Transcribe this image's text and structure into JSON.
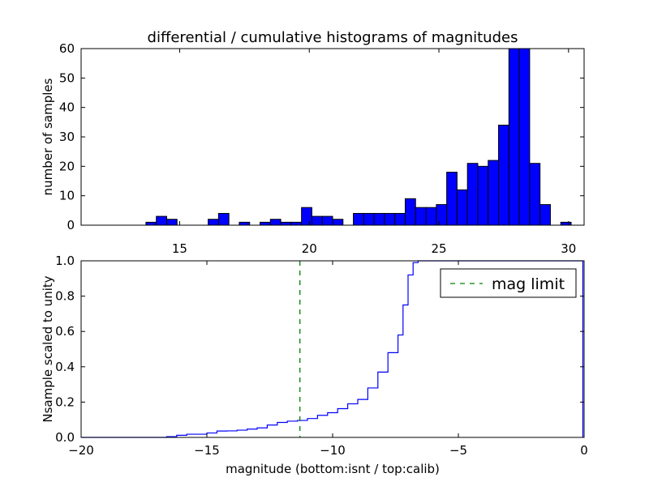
{
  "chart_data": [
    {
      "type": "bar",
      "title": "differential / cumulative histograms of magnitudes",
      "xlabel": "",
      "ylabel": "number of samples",
      "xlim": [
        11.2,
        30.6
      ],
      "ylim": [
        0,
        60
      ],
      "x_ticks": [
        15,
        20,
        25,
        30
      ],
      "y_ticks": [
        0,
        10,
        20,
        30,
        40,
        50,
        60
      ],
      "tick_labels_position": "bottom",
      "bar_color": "#0000ff",
      "bin_edges": [
        13.7,
        14.1,
        14.5,
        14.9,
        15.3,
        15.7,
        16.1,
        16.5,
        16.9,
        17.3,
        17.7,
        18.1,
        18.5,
        18.9,
        19.3,
        19.7,
        20.1,
        20.5,
        20.9,
        21.3,
        21.7,
        22.1,
        22.5,
        22.9,
        23.3,
        23.7,
        24.1,
        24.5,
        24.9,
        25.3,
        25.7,
        26.1,
        26.5,
        26.9,
        27.3,
        27.7,
        28.1,
        28.5,
        28.9,
        29.3,
        29.7,
        30.1,
        30.5,
        30.9
      ],
      "counts": [
        1,
        3,
        2,
        0,
        0,
        0,
        2,
        4,
        0,
        1,
        0,
        1,
        2,
        1,
        1,
        6,
        3,
        3,
        2,
        0,
        4,
        4,
        4,
        4,
        4,
        9,
        6,
        6,
        7,
        18,
        12,
        21,
        20,
        22,
        34,
        60,
        60,
        21,
        7,
        0,
        1,
        0,
        0
      ],
      "clipped_counts_note": ""
    },
    {
      "type": "line",
      "title": "",
      "xlabel": "magnitude (bottom:isnt / top:calib)",
      "ylabel": "Nsample scaled to unity",
      "xlim": [
        -20,
        0
      ],
      "ylim": [
        0,
        1.0
      ],
      "x_ticks": [
        -20,
        -15,
        -10,
        -5,
        0
      ],
      "x_tick_labels": [
        "−20",
        "−15",
        "−10",
        "−5",
        "0"
      ],
      "y_ticks": [
        0.0,
        0.2,
        0.4,
        0.6,
        0.8,
        1.0
      ],
      "y_tick_labels": [
        "0.0",
        "0.2",
        "0.4",
        "0.6",
        "0.8",
        "1.0"
      ],
      "series": [
        {
          "color": "#0000ff",
          "style": "steps",
          "x": [
            -20,
            -16.6,
            -16.2,
            -15.8,
            -15.4,
            -15.0,
            -14.6,
            -14.2,
            -13.8,
            -13.4,
            -13.0,
            -12.6,
            -12.2,
            -11.8,
            -11.4,
            -11.0,
            -10.6,
            -10.2,
            -9.8,
            -9.4,
            -9.0,
            -8.6,
            -8.2,
            -7.8,
            -7.4,
            -7.2,
            -7.0,
            -6.8,
            -6.6,
            -0.05
          ],
          "y": [
            0.0,
            0.004,
            0.012,
            0.018,
            0.018,
            0.025,
            0.036,
            0.037,
            0.041,
            0.047,
            0.054,
            0.07,
            0.085,
            0.092,
            0.096,
            0.107,
            0.125,
            0.14,
            0.163,
            0.19,
            0.215,
            0.28,
            0.37,
            0.48,
            0.58,
            0.75,
            0.92,
            0.99,
            1.0,
            1.0
          ]
        },
        {
          "name": "mag limit",
          "color": "#008000",
          "style": "dashed-vertical",
          "x_value": -11.3
        }
      ],
      "legend": {
        "placement": "top-right",
        "entries": [
          "mag limit"
        ]
      }
    }
  ]
}
